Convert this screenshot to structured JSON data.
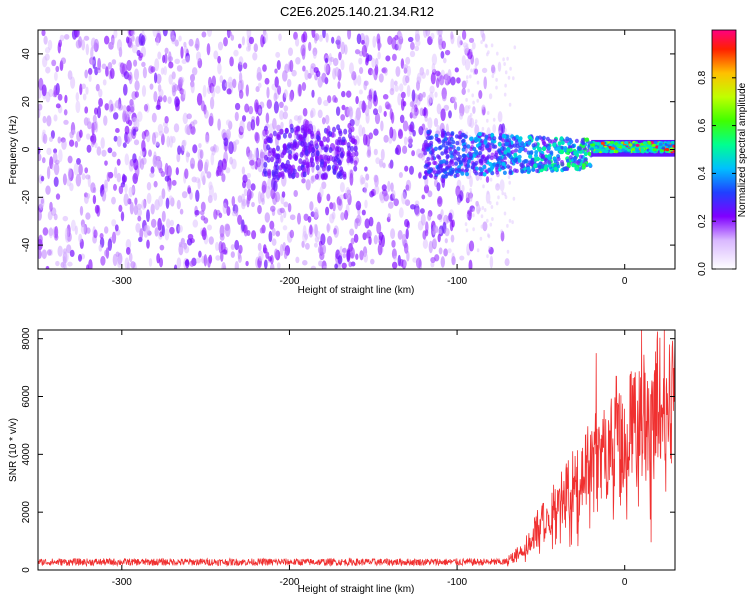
{
  "title": "C2E6.2025.140.21.34.R12",
  "chart_data": [
    {
      "type": "heatmap",
      "xlabel": "Height of straight line (km)",
      "ylabel": "Frequency (Hz)",
      "xlim": [
        -350,
        30
      ],
      "ylim": [
        -50,
        50
      ],
      "xticks": [
        -300,
        -200,
        -100,
        0
      ],
      "yticks": [
        -40,
        -20,
        0,
        20,
        40
      ],
      "colorbar": {
        "label": "Normalized spectral amplitude",
        "range": [
          0,
          1
        ],
        "ticks": [
          0.0,
          0.2,
          0.4,
          0.6,
          0.8
        ],
        "tick_labels": [
          "0.0",
          "0.2",
          "0.4",
          "0.6",
          "0.8"
        ]
      },
      "description_series": [
        {
          "x_range": [
            -350,
            -70
          ],
          "band": [
            -50,
            50
          ],
          "amplitude": [
            0.05,
            0.25
          ]
        },
        {
          "x_range": [
            -120,
            -20
          ],
          "band": [
            -10,
            6
          ],
          "amplitude": [
            0.2,
            0.5
          ]
        },
        {
          "x_range": [
            -20,
            30
          ],
          "band": [
            -2,
            4
          ],
          "amplitude": [
            0.3,
            1.0
          ]
        }
      ]
    },
    {
      "type": "line",
      "xlabel": "Height of straight line (km)",
      "ylabel": "SNR (10 * v/v)",
      "xlim": [
        -350,
        30
      ],
      "ylim": [
        0,
        8300
      ],
      "xticks": [
        -300,
        -200,
        -100,
        0
      ],
      "yticks": [
        0,
        2000,
        4000,
        6000,
        8000
      ],
      "color": "#f03030",
      "envelope": [
        {
          "x": -350,
          "y": 250
        },
        {
          "x": -100,
          "y": 250
        },
        {
          "x": -70,
          "y": 350
        },
        {
          "x": -60,
          "y": 800
        },
        {
          "x": -50,
          "y": 1800
        },
        {
          "x": -40,
          "y": 2500
        },
        {
          "x": -30,
          "y": 3200
        },
        {
          "x": -20,
          "y": 4000
        },
        {
          "x": -10,
          "y": 4600
        },
        {
          "x": 0,
          "y": 5200
        },
        {
          "x": 10,
          "y": 5800
        },
        {
          "x": 20,
          "y": 6400
        },
        {
          "x": 30,
          "y": 6700
        }
      ],
      "peaks": [
        {
          "x": -17,
          "y": 7500
        },
        {
          "x": 10,
          "y": 8300
        },
        {
          "x": -5,
          "y": 6700
        }
      ]
    }
  ]
}
